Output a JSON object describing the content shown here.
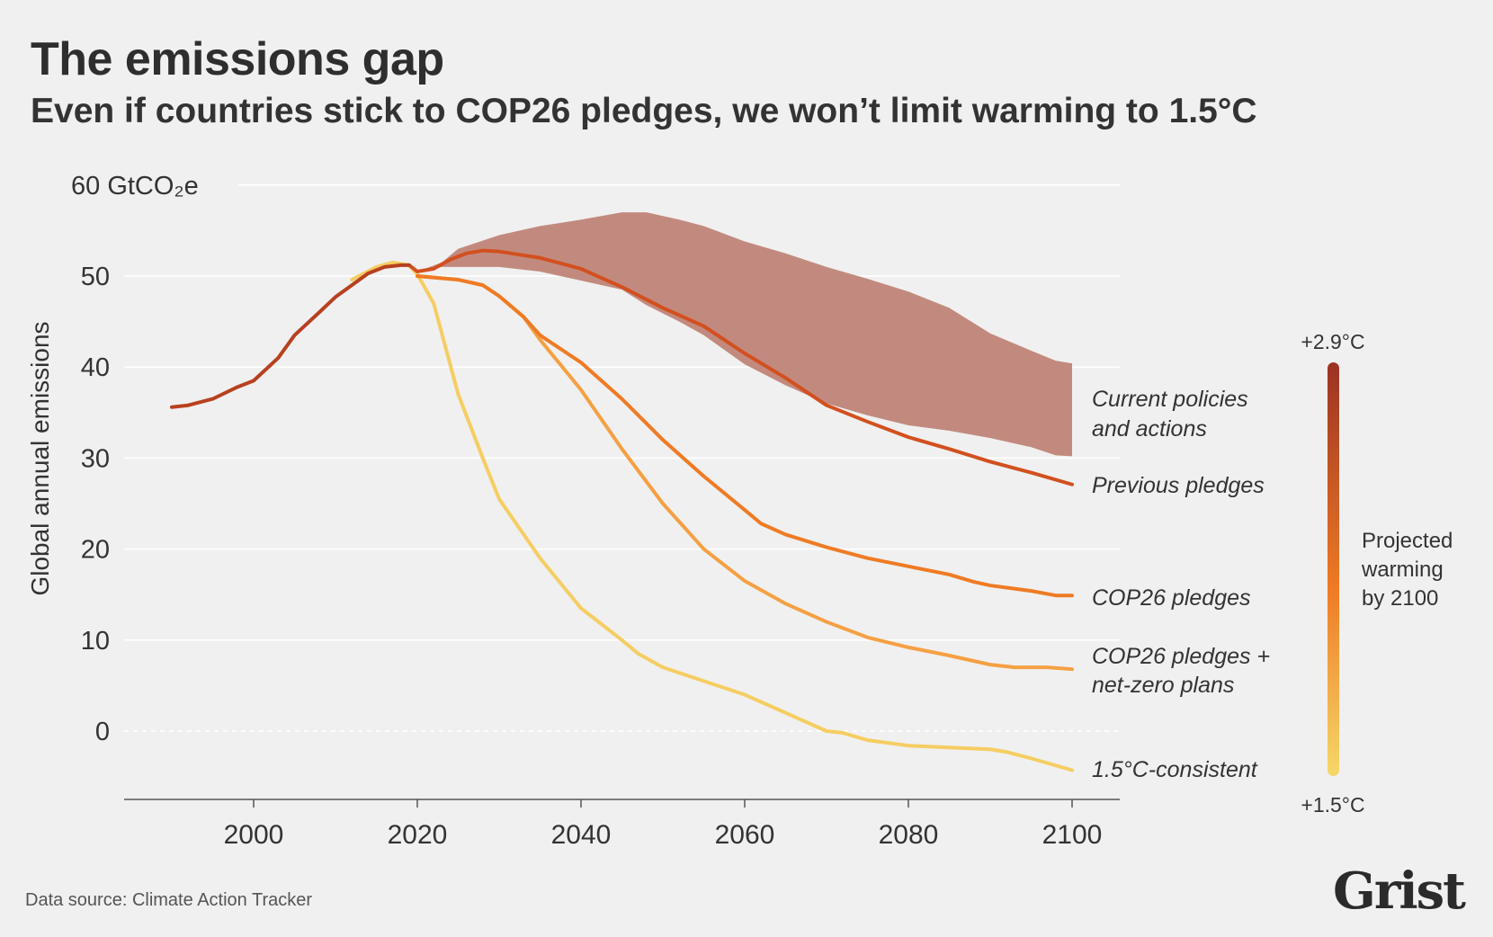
{
  "title": "The emissions gap",
  "subtitle": "Even if countries stick to COP26 pledges, we won’t limit warming to 1.5°C",
  "footer": {
    "source": "Data source: Climate Action Tracker",
    "logo": "Grist"
  },
  "chart_data": {
    "type": "line",
    "ylabel": "Global annual emissions",
    "yunit_label": "60 GtCO₂e",
    "ylim": [
      -7,
      60
    ],
    "xlim": [
      1985,
      2106
    ],
    "yticks": [
      0,
      10,
      20,
      30,
      40,
      50,
      60
    ],
    "ytick_labels": [
      "0",
      "10",
      "20",
      "30",
      "40",
      "50",
      "60 GtCO₂e"
    ],
    "xticks": [
      2000,
      2020,
      2040,
      2060,
      2080,
      2100
    ],
    "xtick_labels": [
      "2000",
      "2020",
      "2040",
      "2060",
      "2080",
      "2100"
    ],
    "grid": true,
    "band": {
      "name": "Current policies and actions",
      "label_lines": [
        "Current policies",
        "and actions"
      ],
      "color": "#c28a7e",
      "x": [
        2020,
        2023,
        2025,
        2030,
        2035,
        2040,
        2045,
        2048,
        2052,
        2055,
        2060,
        2065,
        2070,
        2075,
        2080,
        2085,
        2090,
        2095,
        2098,
        2100
      ],
      "upper": [
        50.5,
        51.5,
        53,
        54.5,
        55.5,
        56.2,
        57,
        57,
        56.2,
        55.5,
        53.8,
        52.5,
        51,
        49.7,
        48.3,
        46.5,
        43.7,
        41.8,
        40.7,
        40.4
      ],
      "lower": [
        50.5,
        51,
        51,
        51,
        50.5,
        49.5,
        48.5,
        46.8,
        45,
        43.5,
        40.3,
        38,
        36,
        34.7,
        33.6,
        33,
        32.2,
        31.2,
        30.3,
        30.2
      ]
    },
    "series": [
      {
        "name": "1.5°C-consistent",
        "label_lines": [
          "1.5°C-consistent"
        ],
        "color": "#f5cd62",
        "x": [
          2012,
          2015,
          2017,
          2019,
          2020,
          2022,
          2025,
          2028,
          2030,
          2035,
          2040,
          2045,
          2047,
          2050,
          2055,
          2060,
          2065,
          2070,
          2072,
          2075,
          2080,
          2085,
          2090,
          2092,
          2095,
          2100
        ],
        "y": [
          49.6,
          51,
          51.5,
          51.2,
          50.2,
          47,
          37,
          30,
          25.5,
          19,
          13.5,
          10,
          8.5,
          7,
          5.5,
          4,
          2,
          0,
          -0.2,
          -1,
          -1.6,
          -1.8,
          -2,
          -2.3,
          -3,
          -4.3
        ]
      },
      {
        "name": "COP26 pledges + net-zero plans",
        "label_lines": [
          "COP26 pledges +",
          "net-zero plans"
        ],
        "color": "#f5a043",
        "x": [
          2020,
          2025,
          2028,
          2030,
          2033,
          2035,
          2040,
          2045,
          2050,
          2055,
          2060,
          2065,
          2070,
          2075,
          2080,
          2085,
          2090,
          2093,
          2097,
          2100
        ],
        "y": [
          50,
          49.6,
          49,
          47.8,
          45.5,
          43,
          37.5,
          31,
          25,
          20,
          16.5,
          14,
          12,
          10.3,
          9.2,
          8.3,
          7.3,
          7,
          7,
          6.8
        ]
      },
      {
        "name": "COP26 pledges",
        "label_lines": [
          "COP26 pledges"
        ],
        "color": "#ef7b24",
        "x": [
          2020,
          2025,
          2028,
          2030,
          2033,
          2035,
          2037,
          2040,
          2045,
          2048,
          2050,
          2055,
          2060,
          2062,
          2065,
          2070,
          2075,
          2080,
          2085,
          2088,
          2090,
          2095,
          2098,
          2100
        ],
        "y": [
          50,
          49.6,
          49,
          47.8,
          45.5,
          43.5,
          42.3,
          40.5,
          36.5,
          33.8,
          32,
          28,
          24.3,
          22.8,
          21.6,
          20.2,
          19,
          18.1,
          17.2,
          16.4,
          16,
          15.4,
          14.9,
          14.9
        ]
      },
      {
        "name": "Previous pledges",
        "label_lines": [
          "Previous pledges"
        ],
        "color": "#d2501f",
        "x": [
          2019,
          2020,
          2022,
          2024,
          2026,
          2028,
          2030,
          2035,
          2040,
          2045,
          2050,
          2055,
          2060,
          2065,
          2070,
          2075,
          2080,
          2085,
          2090,
          2095,
          2100
        ],
        "y": [
          51.2,
          50.5,
          50.8,
          51.8,
          52.5,
          52.8,
          52.7,
          52,
          50.8,
          48.8,
          46.5,
          44.5,
          41.5,
          38.8,
          35.8,
          34,
          32.3,
          31,
          29.6,
          28.4,
          27.1
        ]
      },
      {
        "name": "Historical",
        "label_lines": [],
        "color": "#b8401f",
        "x": [
          1990,
          1992,
          1995,
          1998,
          2000,
          2003,
          2005,
          2008,
          2010,
          2012,
          2014,
          2016,
          2018,
          2019
        ],
        "y": [
          35.6,
          35.8,
          36.5,
          37.8,
          38.5,
          41,
          43.5,
          46,
          47.7,
          49,
          50.3,
          51,
          51.2,
          51.2
        ]
      }
    ],
    "legend": {
      "title_lines": [
        "Projected",
        "warming",
        "by 2100"
      ],
      "max_label": "+2.9°C",
      "min_label": "+1.5°C",
      "colors": [
        "#9b3223",
        "#ef7b24",
        "#f5d86a"
      ]
    }
  }
}
